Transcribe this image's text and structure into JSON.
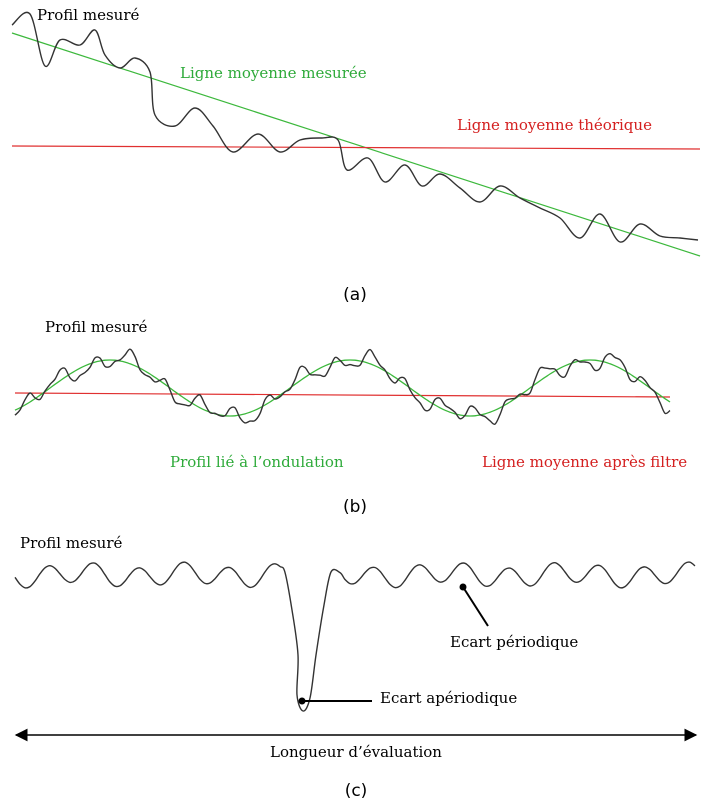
{
  "panel_a": {
    "profile_label": "Profil mesuré",
    "measured_mean_label": "Ligne moyenne mesurée",
    "theoretical_mean_label": "Ligne moyenne théorique",
    "caption": "(a)"
  },
  "panel_b": {
    "profile_label": "Profil mesuré",
    "waviness_label": "Profil lié à l’ondulation",
    "filtered_mean_label": "Ligne moyenne après filtre",
    "caption": "(b)"
  },
  "panel_c": {
    "profile_label": "Profil mesuré",
    "periodic_label": "Ecart périodique",
    "aperiodic_label": "Ecart apériodique",
    "length_label": "Longueur d’évaluation",
    "caption": "(c)"
  }
}
